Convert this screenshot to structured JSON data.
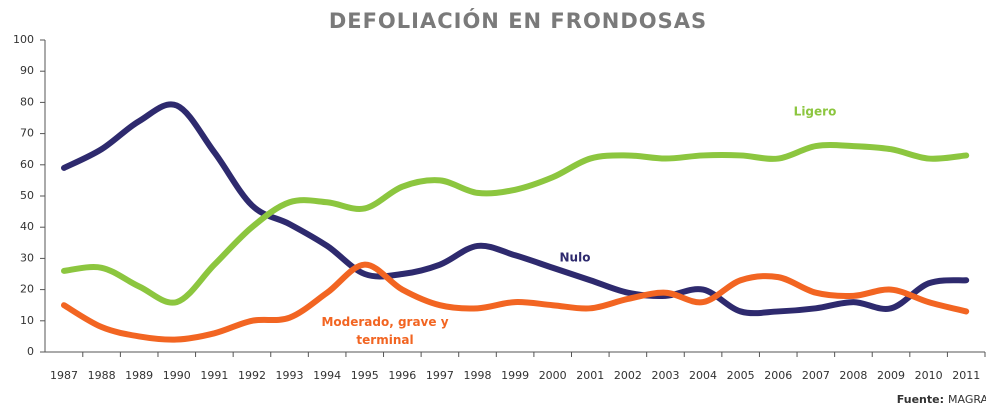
{
  "chart_data": {
    "type": "line",
    "title": "DEFOLIACIÓN EN FRONDOSAS",
    "categories": [
      "1987",
      "1988",
      "1989",
      "1990",
      "1991",
      "1992",
      "1993",
      "1994",
      "1995",
      "1996",
      "1997",
      "1998",
      "1999",
      "2000",
      "2001",
      "2002",
      "2003",
      "2004",
      "2005",
      "2006",
      "2007",
      "2008",
      "2009",
      "2010",
      "2011"
    ],
    "series": [
      {
        "name": "Nulo",
        "color": "#2e2a6e",
        "values": [
          59,
          65,
          74,
          79,
          64,
          47,
          41,
          34,
          25,
          25,
          28,
          34,
          31,
          27,
          23,
          19,
          18,
          20,
          13,
          13,
          14,
          16,
          14,
          22,
          23
        ]
      },
      {
        "name": "Ligero",
        "color": "#8cc63f",
        "values": [
          26,
          27,
          21,
          16,
          28,
          40,
          48,
          48,
          46,
          53,
          55,
          51,
          52,
          56,
          62,
          63,
          62,
          63,
          63,
          62,
          66,
          66,
          65,
          62,
          63
        ]
      },
      {
        "name": "Moderado, grave y terminal",
        "color": "#f26522",
        "values": [
          15,
          8,
          5,
          4,
          6,
          10,
          11,
          19,
          28,
          20,
          15,
          14,
          16,
          15,
          14,
          17,
          19,
          16,
          23,
          24,
          19,
          18,
          20,
          16,
          13
        ]
      }
    ],
    "ylim": [
      0,
      100
    ],
    "yticks": [
      0,
      10,
      20,
      30,
      40,
      50,
      60,
      70,
      80,
      90,
      100
    ],
    "grid": false,
    "source_label": "Fuente:",
    "source": "MAGRAMA"
  }
}
